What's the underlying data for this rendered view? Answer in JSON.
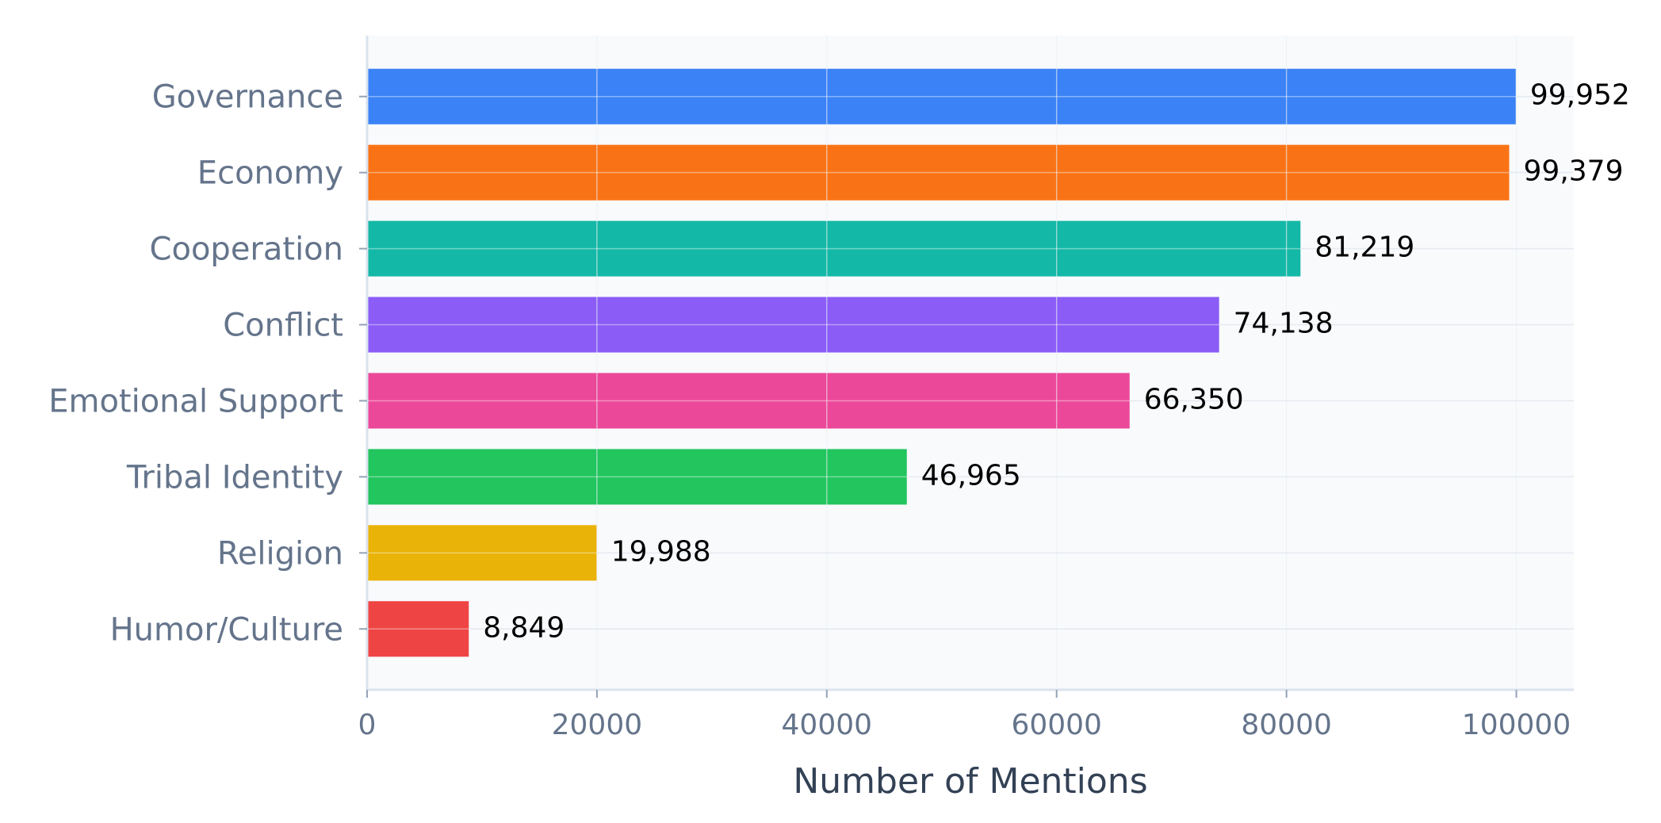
{
  "chart_data": {
    "type": "bar",
    "orientation": "horizontal",
    "categories": [
      "Governance",
      "Economy",
      "Cooperation",
      "Conflict",
      "Emotional Support",
      "Tribal Identity",
      "Religion",
      "Humor/Culture"
    ],
    "values": [
      99952,
      99379,
      81219,
      74138,
      66350,
      46965,
      19988,
      8849
    ],
    "value_labels": [
      "99,952",
      "99,379",
      "81,219",
      "74,138",
      "66,350",
      "46,965",
      "19,988",
      "8,849"
    ],
    "colors": [
      "#3b82f6",
      "#f97316",
      "#14b8a6",
      "#8b5cf6",
      "#ec4899",
      "#22c55e",
      "#eab308",
      "#ef4444"
    ],
    "xlabel": "Number of Mentions",
    "ylabel": "",
    "title": "",
    "xlim": [
      0,
      105000
    ],
    "xticks": [
      0,
      20000,
      40000,
      60000,
      80000,
      100000
    ],
    "xtick_labels": [
      "0",
      "20000",
      "40000",
      "60000",
      "80000",
      "100000"
    ],
    "grid": true,
    "plot_background": "#f8fafc",
    "grid_color": "#e2e8f0"
  }
}
